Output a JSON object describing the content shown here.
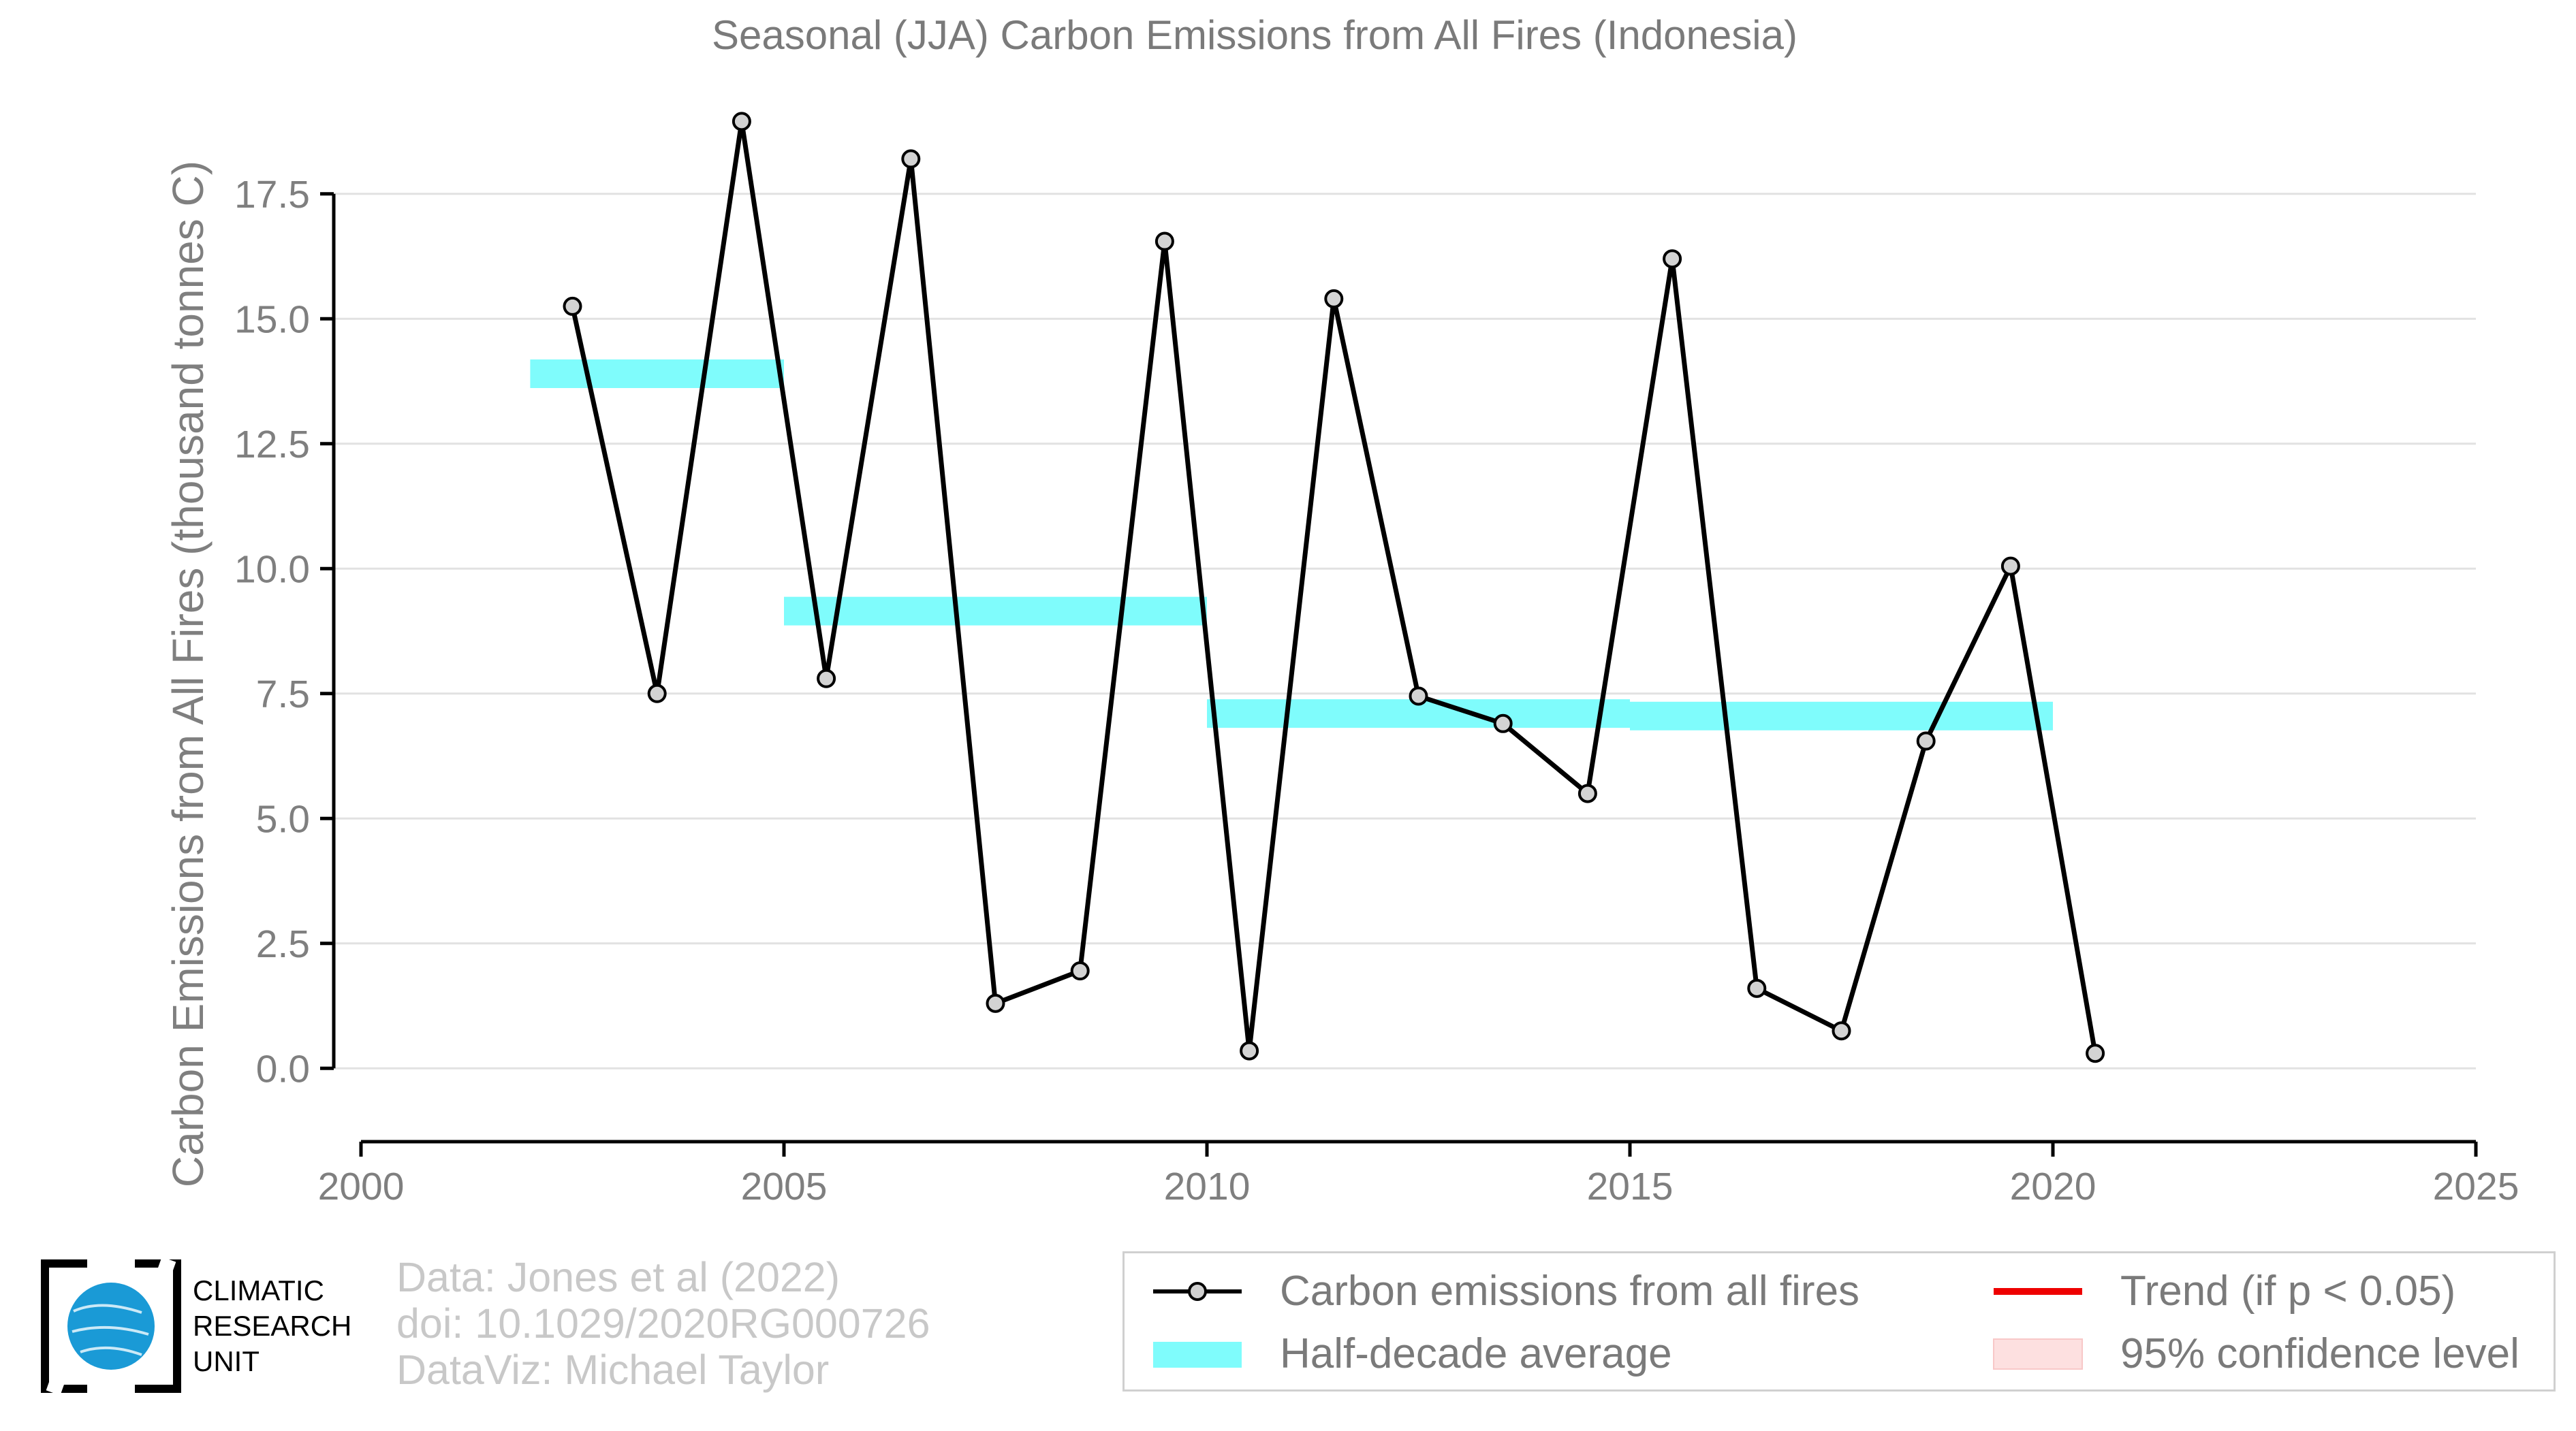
{
  "chart_data": {
    "type": "line",
    "title": "Seasonal (JJA) Carbon Emissions from All Fires (Indonesia)",
    "xlabel": "",
    "ylabel": "Carbon Emissions from All Fires (thousand tonnes C)",
    "xlim": [
      2000,
      2025
    ],
    "ylim": [
      -1.1,
      19.2
    ],
    "xticks": [
      2000,
      2005,
      2010,
      2015,
      2020,
      2025
    ],
    "yticks": [
      0.0,
      2.5,
      5.0,
      7.5,
      10.0,
      12.5,
      15.0,
      17.5
    ],
    "ytick_labels": [
      "0.0",
      "2.5",
      "5.0",
      "7.5",
      "10.0",
      "12.5",
      "15.0",
      "17.5"
    ],
    "grid": "horizontal",
    "series": [
      {
        "name": "Carbon emissions from all fires",
        "color": "#000000",
        "x": [
          2002.5,
          2003.5,
          2004.5,
          2005.5,
          2006.5,
          2007.5,
          2008.5,
          2009.5,
          2010.5,
          2011.5,
          2012.5,
          2013.5,
          2014.5,
          2015.5,
          2016.5,
          2017.5,
          2018.5,
          2019.5,
          2020.5
        ],
        "y": [
          15.25,
          7.5,
          18.95,
          7.8,
          18.2,
          1.3,
          1.95,
          16.55,
          0.35,
          15.4,
          7.45,
          6.9,
          5.5,
          16.2,
          1.6,
          0.75,
          6.55,
          10.05,
          0.3
        ]
      },
      {
        "name": "Half-decade average",
        "color": "#7ffcfc",
        "segments": [
          {
            "x0": 2002,
            "x1": 2005,
            "y": 13.9
          },
          {
            "x0": 2005,
            "x1": 2010,
            "y": 9.15
          },
          {
            "x0": 2010,
            "x1": 2015,
            "y": 7.1
          },
          {
            "x0": 2015,
            "x1": 2020,
            "y": 7.05
          }
        ]
      }
    ],
    "legend": {
      "placement": "bottom-right",
      "entries": [
        {
          "label": "Carbon emissions from all fires",
          "symbol": "line-marker",
          "color": "#000000"
        },
        {
          "label": "Half-decade average",
          "symbol": "band",
          "color": "#7ffcfc"
        },
        {
          "label": "Trend (if p < 0.05)",
          "symbol": "line",
          "color": "#ee0000"
        },
        {
          "label": "95% confidence level",
          "symbol": "fill",
          "color": "#fde0e0"
        }
      ]
    }
  },
  "logo": {
    "lines": [
      "CLIMATIC",
      "RESEARCH",
      "UNIT"
    ]
  },
  "credits": {
    "data": "Data: Jones et al (2022)",
    "doi": "doi: 10.1029/2020RG000726",
    "dataviz": "DataViz: Michael Taylor"
  }
}
